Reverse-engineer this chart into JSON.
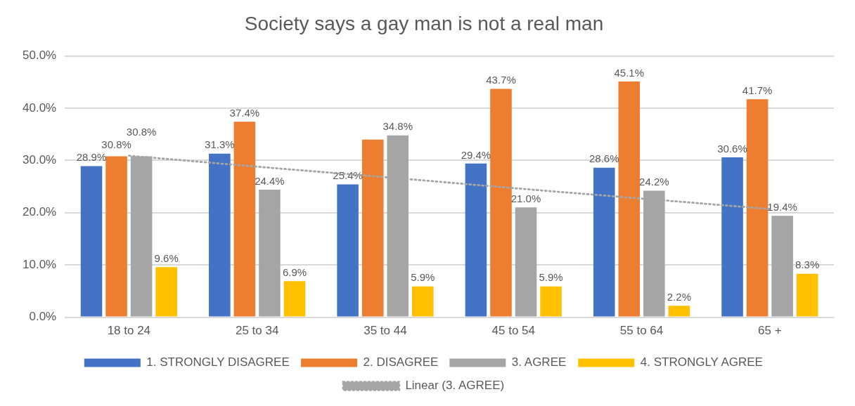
{
  "chart_data": {
    "type": "bar",
    "title": "Society says a gay man is not a real man",
    "categories": [
      "18 to 24",
      "25 to 34",
      "35 to 44",
      "45 to 54",
      "55 to 64",
      "65 +"
    ],
    "series": [
      {
        "name": "1. STRONGLY DISAGREE",
        "color": "#4472c4",
        "values": [
          28.9,
          31.3,
          25.4,
          29.4,
          28.6,
          30.6
        ],
        "value_labels": [
          "28.9%",
          "31.3%",
          "25.4%",
          "29.4%",
          "28.6%",
          "30.6%"
        ]
      },
      {
        "name": "2. DISAGREE",
        "color": "#ed7d31",
        "values": [
          30.8,
          37.4,
          34.0,
          43.7,
          45.1,
          41.7
        ],
        "value_labels": [
          "30.8%",
          "37.4%",
          null,
          "43.7%",
          "45.1%",
          "41.7%"
        ]
      },
      {
        "name": "3. AGREE",
        "color": "#a5a5a5",
        "values": [
          30.8,
          24.4,
          34.8,
          21.0,
          24.2,
          19.4
        ],
        "value_labels": [
          "30.8%",
          "24.4%",
          "34.8%",
          "21.0%",
          "24.2%",
          "19.4%"
        ]
      },
      {
        "name": "4. STRONGLY AGREE",
        "color": "#ffc000",
        "values": [
          9.6,
          6.9,
          5.9,
          5.9,
          2.2,
          8.3
        ],
        "value_labels": [
          "9.6%",
          "6.9%",
          "5.9%",
          "5.9%",
          "2.2%",
          "8.3%"
        ]
      },
      {
        "name": "Linear (3. AGREE)",
        "type": "line",
        "color": "#a5a5a5",
        "line_style": "dotted",
        "marker": "none",
        "values": [
          30.9,
          28.8,
          26.8,
          24.7,
          22.7,
          20.7
        ]
      }
    ],
    "ylim": [
      0,
      50
    ],
    "yticks": [
      {
        "value": 0,
        "label": "0.0%"
      },
      {
        "value": 10,
        "label": "10.0%"
      },
      {
        "value": 20,
        "label": "20.0%"
      },
      {
        "value": 30,
        "label": "30.0%"
      },
      {
        "value": 40,
        "label": "40.0%"
      },
      {
        "value": 50,
        "label": "50.0%"
      }
    ],
    "grid": "y",
    "legend": "bottom"
  }
}
